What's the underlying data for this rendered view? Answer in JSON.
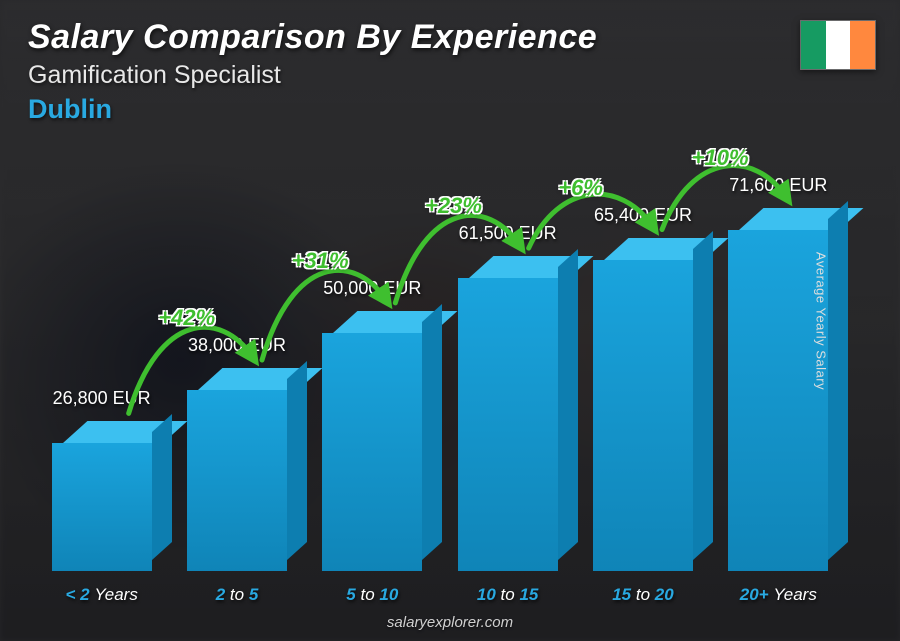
{
  "header": {
    "title": "Salary Comparison By Experience",
    "subtitle": "Gamification Specialist",
    "location": "Dublin",
    "location_color": "#29a9e1"
  },
  "flag": {
    "stripes": [
      "#169b62",
      "#ffffff",
      "#ff883e"
    ]
  },
  "yaxis_label": "Average Yearly Salary",
  "footer": "salaryexplorer.com",
  "chart": {
    "type": "bar",
    "currency": "EUR",
    "max_value": 80000,
    "bar_front_color": "#1aa4dd",
    "bar_top_color": "#3cc0f0",
    "bar_side_color": "#0d7eb0",
    "tick_color": "#29a9e1",
    "bars": [
      {
        "label_prefix": "< 2",
        "label_unit": "Years",
        "value": 26800,
        "value_label": "26,800 EUR"
      },
      {
        "label_prefix": "2",
        "label_mid": "to",
        "label_suffix": "5",
        "value": 38000,
        "value_label": "38,000 EUR"
      },
      {
        "label_prefix": "5",
        "label_mid": "to",
        "label_suffix": "10",
        "value": 50000,
        "value_label": "50,000 EUR"
      },
      {
        "label_prefix": "10",
        "label_mid": "to",
        "label_suffix": "15",
        "value": 61500,
        "value_label": "61,500 EUR"
      },
      {
        "label_prefix": "15",
        "label_mid": "to",
        "label_suffix": "20",
        "value": 65400,
        "value_label": "65,400 EUR"
      },
      {
        "label_prefix": "20+",
        "label_unit": "Years",
        "value": 71600,
        "value_label": "71,600 EUR"
      }
    ],
    "arcs": [
      {
        "label": "+42%",
        "color": "#3fbf2f"
      },
      {
        "label": "+31%",
        "color": "#3fbf2f"
      },
      {
        "label": "+23%",
        "color": "#3fbf2f"
      },
      {
        "label": "+6%",
        "color": "#3fbf2f"
      },
      {
        "label": "+10%",
        "color": "#3fbf2f"
      }
    ],
    "arc_stroke_width": 5,
    "arc_label_fontsize": 22
  }
}
